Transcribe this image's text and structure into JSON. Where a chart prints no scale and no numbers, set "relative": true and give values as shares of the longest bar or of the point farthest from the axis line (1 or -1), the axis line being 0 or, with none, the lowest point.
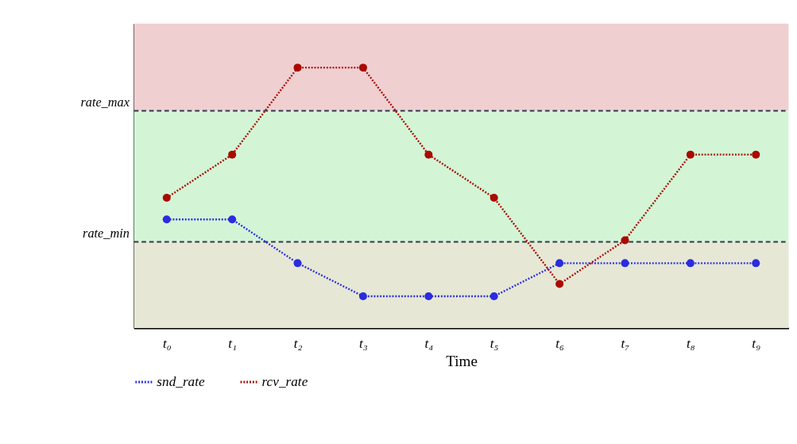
{
  "chart_data": {
    "type": "line",
    "relative": true,
    "xlabel": "Time",
    "categories": [
      "t₀",
      "t₁",
      "t₂",
      "t₃",
      "t₄",
      "t₅",
      "t₆",
      "t₇",
      "t₈",
      "t₉"
    ],
    "series": [
      {
        "name": "snd_rate",
        "color": "#2b2be0",
        "values": [
          0.417,
          0.417,
          0.249,
          0.122,
          0.122,
          0.122,
          0.249,
          0.249,
          0.249,
          0.249
        ]
      },
      {
        "name": "rcv_rate",
        "color": "#aa0a00",
        "values": [
          0.5,
          0.666,
          1,
          1,
          0.666,
          0.5,
          0.169,
          0.337,
          0.666,
          0.666
        ]
      }
    ],
    "ref_lines": [
      {
        "axis": "y",
        "value": 0.834,
        "label": "rate_max",
        "color": "#2e3a4f",
        "line_style": "dashed"
      },
      {
        "axis": "y",
        "value": 0.331,
        "label": "rate_min",
        "color": "#2e3a4f",
        "line_style": "dashed"
      }
    ],
    "bands": [
      {
        "axis": "y",
        "from": 0.834,
        "to": 1.169,
        "color": "#f0cfd1"
      },
      {
        "axis": "y",
        "from": 0.331,
        "to": 0.834,
        "color": "#d3f5d6"
      },
      {
        "axis": "y",
        "from": 0,
        "to": 0.331,
        "color": "#e6e8d5"
      }
    ],
    "marker": "circle",
    "line_style": "dotted",
    "legend": "bottom",
    "grid": false
  }
}
